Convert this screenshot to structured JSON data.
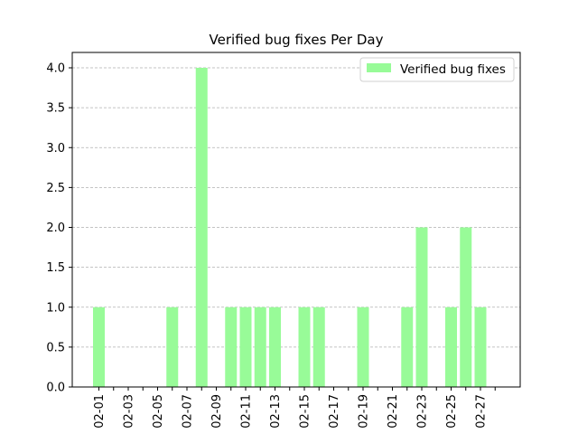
{
  "chart_data": {
    "type": "bar",
    "title": "Verified bug fixes Per Day",
    "xlabel": "",
    "ylabel": "",
    "categories": [
      "02-01",
      "02-02",
      "02-03",
      "02-04",
      "02-05",
      "02-06",
      "02-07",
      "02-08",
      "02-09",
      "02-10",
      "02-11",
      "02-12",
      "02-13",
      "02-14",
      "02-15",
      "02-16",
      "02-17",
      "02-18",
      "02-19",
      "02-20",
      "02-21",
      "02-22",
      "02-23",
      "02-24",
      "02-25",
      "02-26",
      "02-27",
      "02-28"
    ],
    "x_tick_labels": [
      "02-01",
      "02-03",
      "02-05",
      "02-07",
      "02-09",
      "02-11",
      "02-13",
      "02-15",
      "02-17",
      "02-19",
      "02-21",
      "02-23",
      "02-25",
      "02-27"
    ],
    "series": [
      {
        "name": "Verified bug fixes",
        "values": [
          1,
          0,
          0,
          0,
          0,
          1,
          0,
          4,
          0,
          1,
          1,
          1,
          1,
          0,
          1,
          1,
          0,
          0,
          1,
          0,
          0,
          1,
          2,
          0,
          1,
          2,
          1,
          0
        ]
      }
    ],
    "y_tick_labels": [
      "0.0",
      "0.5",
      "1.0",
      "1.5",
      "2.0",
      "2.5",
      "3.0",
      "3.5",
      "4.0"
    ],
    "ylim": [
      0,
      4.0
    ],
    "grid": "y-dashed",
    "legend_position": "top-right",
    "bar_color": "#98fb98"
  }
}
